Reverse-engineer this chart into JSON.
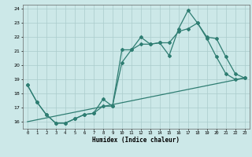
{
  "title": "",
  "xlabel": "Humidex (Indice chaleur)",
  "bg_color": "#cce8e8",
  "grid_color": "#aacccc",
  "line_color": "#2e7d72",
  "xlim": [
    -0.5,
    23.5
  ],
  "ylim": [
    15.5,
    24.3
  ],
  "yticks": [
    16,
    17,
    18,
    19,
    20,
    21,
    22,
    23,
    24
  ],
  "xticks": [
    0,
    1,
    2,
    3,
    4,
    5,
    6,
    7,
    8,
    9,
    10,
    11,
    12,
    13,
    14,
    15,
    16,
    17,
    18,
    19,
    20,
    21,
    22,
    23
  ],
  "series1_x": [
    0,
    1,
    2,
    3,
    4,
    5,
    6,
    7,
    8,
    9,
    10,
    11,
    12,
    13,
    14,
    15,
    16,
    17,
    18,
    19,
    20,
    21,
    22,
    23
  ],
  "series1_y": [
    18.6,
    17.4,
    16.5,
    15.9,
    15.9,
    16.2,
    16.5,
    16.6,
    17.6,
    17.1,
    21.1,
    21.1,
    22.0,
    21.5,
    21.6,
    20.7,
    22.6,
    23.9,
    23.0,
    21.9,
    20.6,
    19.4,
    19.0,
    19.1
  ],
  "series2_x": [
    0,
    1,
    2,
    3,
    4,
    5,
    6,
    7,
    8,
    9,
    10,
    11,
    12,
    13,
    14,
    15,
    16,
    17,
    18,
    19,
    20,
    21,
    22,
    23
  ],
  "series2_y": [
    18.6,
    17.4,
    16.5,
    15.9,
    15.9,
    16.2,
    16.5,
    16.6,
    17.1,
    17.1,
    20.2,
    21.1,
    21.5,
    21.5,
    21.6,
    21.6,
    22.4,
    22.6,
    23.0,
    22.0,
    21.9,
    20.6,
    19.4,
    19.1
  ],
  "series3_x": [
    0,
    23
  ],
  "series3_y": [
    16.0,
    19.1
  ]
}
